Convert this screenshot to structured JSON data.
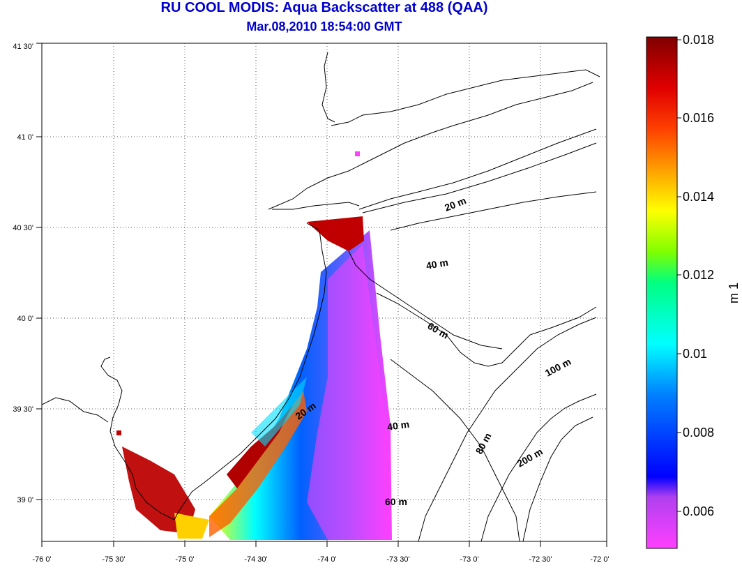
{
  "title": "RU COOL MODIS: Aqua Backscatter at 488 (QAA)",
  "subtitle": "Mar.08,2010 18:54:00 GMT",
  "map": {
    "lon_ticks": [
      "-76 0'",
      "-75 30'",
      "-75 0'",
      "-74 30'",
      "-74 0'",
      "-73 30'",
      "-73 0'",
      "-72 30'",
      "-72 0'"
    ],
    "lat_ticks": [
      "41 30'",
      "41 0'",
      "40 30'",
      "40 0'",
      "39 30'",
      "39 0'"
    ],
    "grid": true,
    "contour_labels": [
      "20 m",
      "40 m",
      "60 m",
      "100 m",
      "20 m",
      "40 m",
      "80 m",
      "200 m",
      "60 m"
    ]
  },
  "colorbar": {
    "unit": "m 1",
    "ticks": [
      "0.018",
      "0.016",
      "0.014",
      "0.012",
      "0.01",
      "0.008",
      "0.006"
    ],
    "range": [
      0.005,
      0.018
    ],
    "colors": [
      "#ff40ff",
      "#8040e0",
      "#0000ff",
      "#0080ff",
      "#00ffff",
      "#00ff80",
      "#80ff00",
      "#ffff00",
      "#ffa000",
      "#ff4000",
      "#e00000",
      "#800000"
    ]
  }
}
